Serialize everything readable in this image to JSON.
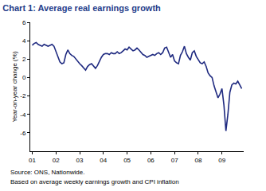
{
  "chart_data": {
    "type": "line",
    "title": "Chart 1: Average real earnings growth",
    "y_label": "Year-on-year change (%)",
    "annotations": [
      "Source: ONS, Nationwide.",
      "Based on average weekly earnings growth and CPI inflation"
    ],
    "categories": [
      "01",
      null,
      null,
      null,
      null,
      null,
      null,
      null,
      null,
      null,
      null,
      null,
      "02",
      null,
      null,
      null,
      null,
      null,
      null,
      null,
      null,
      null,
      null,
      null,
      "03",
      null,
      null,
      null,
      null,
      null,
      null,
      null,
      null,
      null,
      null,
      null,
      "04",
      null,
      null,
      null,
      null,
      null,
      null,
      null,
      null,
      null,
      null,
      null,
      "05",
      null,
      null,
      null,
      null,
      null,
      null,
      null,
      null,
      null,
      null,
      null,
      "06",
      null,
      null,
      null,
      null,
      null,
      null,
      null,
      null,
      null,
      null,
      null,
      "07",
      null,
      null,
      null,
      null,
      null,
      null,
      null,
      null,
      null,
      null,
      null,
      "08",
      null,
      null,
      null,
      null,
      null,
      null,
      null,
      null,
      null,
      null,
      null,
      "09",
      null,
      null,
      null,
      null,
      null,
      null,
      null,
      null,
      null,
      null
    ],
    "values": [
      3.5,
      3.7,
      3.8,
      3.6,
      3.5,
      3.4,
      3.6,
      3.5,
      3.4,
      3.5,
      3.6,
      3.4,
      2.8,
      2.2,
      1.7,
      1.5,
      1.6,
      2.5,
      3.0,
      2.6,
      2.4,
      2.3,
      2.0,
      1.8,
      1.5,
      1.3,
      1.0,
      0.8,
      1.2,
      1.4,
      1.5,
      1.2,
      1.0,
      1.3,
      1.8,
      2.2,
      2.5,
      2.6,
      2.6,
      2.5,
      2.7,
      2.6,
      2.6,
      2.8,
      2.6,
      2.7,
      2.9,
      3.1,
      3.0,
      3.3,
      3.1,
      2.9,
      3.0,
      3.2,
      3.0,
      2.7,
      2.5,
      2.4,
      2.2,
      2.3,
      2.4,
      2.5,
      2.4,
      2.6,
      2.7,
      2.5,
      2.7,
      3.2,
      3.3,
      2.8,
      2.2,
      2.5,
      1.8,
      1.6,
      1.5,
      2.4,
      2.8,
      3.4,
      2.6,
      2.2,
      1.9,
      2.7,
      2.9,
      2.3,
      2.0,
      1.6,
      1.5,
      1.7,
      1.2,
      0.5,
      0.2,
      0.0,
      -0.9,
      -1.6,
      -2.2,
      -1.8,
      -1.2,
      -3.0,
      -5.8,
      -4.0,
      -1.6,
      -0.8,
      -0.6,
      -0.7,
      -0.4,
      -0.8,
      -1.2
    ],
    "color": "#1f2a80",
    "ylim": [
      -8,
      6
    ],
    "yticks": [
      -6,
      -4,
      -2,
      0,
      2,
      4,
      6
    ],
    "grid": false
  }
}
